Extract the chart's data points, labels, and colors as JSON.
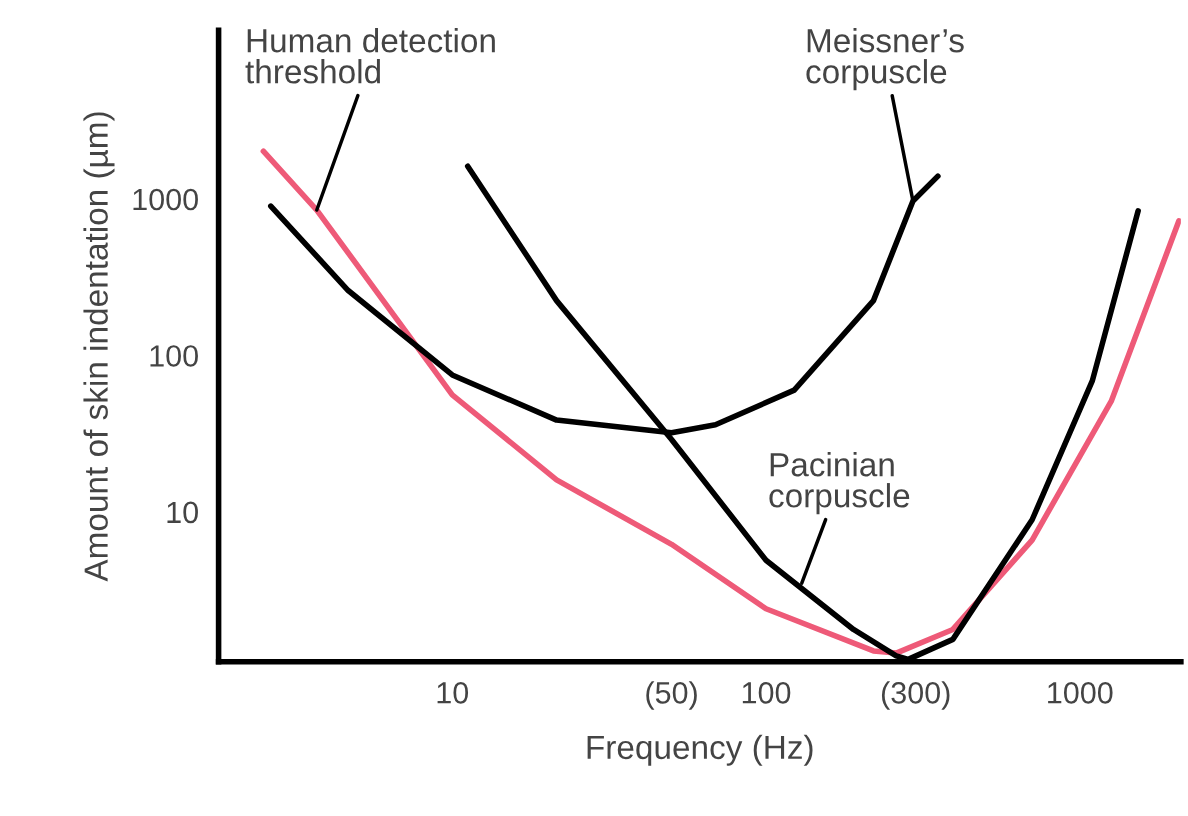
{
  "chart_data": {
    "type": "line",
    "xlabel": "Frequency (Hz)",
    "ylabel": "Amount of skin indentation (µm)",
    "log": "xy",
    "xlim": [
      1.8,
      2100
    ],
    "ylim": [
      1.1,
      12000
    ],
    "xticks": [
      10,
      {
        "value": 50,
        "label": "(50)"
      },
      100,
      {
        "value": 300,
        "label": "(300)"
      },
      1000
    ],
    "yticks": [
      10,
      100,
      1000
    ],
    "grid": false,
    "legend": false,
    "marker": "none",
    "line_style": "solid",
    "series": [
      {
        "color": "#ee5a78",
        "x": [
          2.5,
          3.7,
          10,
          21.5,
          50,
          100,
          220,
          260,
          394,
          705,
          1260,
          2070
        ],
        "values": [
          2020,
          850,
          56,
          16,
          6.2,
          2.4,
          1.29,
          1.25,
          1.77,
          6.6,
          51,
          725
        ]
      },
      {
        "color": "#000000",
        "x": [
          2.64,
          4.66,
          10,
          21.5,
          50,
          69,
          123,
          220,
          294,
          353
        ],
        "values": [
          900,
          260,
          75,
          38.6,
          32,
          36,
          60,
          224,
          970,
          1400
        ]
      },
      {
        "color": "#000000",
        "x": [
          11.2,
          21.5,
          50,
          100,
          190,
          260,
          284,
          394,
          705,
          1097,
          1535
        ],
        "values": [
          1620,
          224,
          29,
          4.9,
          1.77,
          1.2,
          1.14,
          1.53,
          8.9,
          69,
          840
        ]
      }
    ],
    "annotations": [
      {
        "text": "Human detection\nthreshold",
        "x": 3.7,
        "y": 850
      },
      {
        "text": "Meissner’s\ncorpuscle",
        "x": 294,
        "y": 970
      },
      {
        "text": "Pacinian\ncorpuscle",
        "x": 130,
        "y": 3.5
      }
    ]
  }
}
